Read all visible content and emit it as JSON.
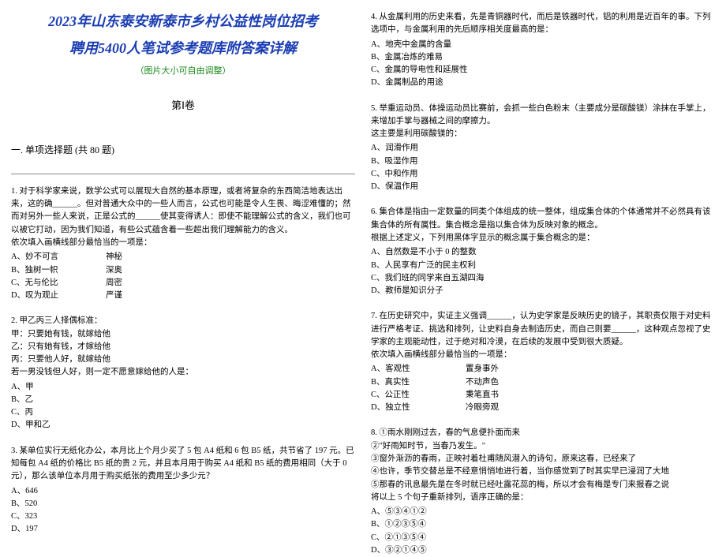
{
  "header": {
    "title_line1": "2023年山东泰安新泰市乡村公益性岗位招考",
    "title_line2": "聘用5400人笔试参考题库附答案详解",
    "subtitle": "（图片大小可自由调整）",
    "volume": "第Ⅰ卷",
    "section": "一. 单项选择题 (共 80 题)"
  },
  "q1": {
    "text": "1. 对于科学家来说，数学公式可以展现大自然的基本原理，或者将复杂的东西简洁地表达出来，这的确______。但对普通大众中的一些人而言，公式也可能是令人生畏、晦涩难懂的；然而对另外一些人来说，正是公式的______使其变得诱人：即使不能理解公式的含义，我们也可以被它打动，因为我们知道，有些公式蕴含着一些超出我们理解能力的含义。",
    "prompt": "依次填入画横线部分最恰当的一项是：",
    "a1": "A、妙不可言",
    "a2": "神秘",
    "b1": "B、独树一帜",
    "b2": "深奥",
    "c1": "C、无与伦比",
    "c2": "周密",
    "d1": "D、叹为观止",
    "d2": "严谨"
  },
  "q2": {
    "text": "2. 甲乙丙三人择偶标准：",
    "l1": "甲：只要她有钱，就嫁给他",
    "l2": "乙：只有她有钱，才嫁给他",
    "l3": "丙：只要他人好，就嫁给他",
    "l4": "若一男没钱但人好，则一定不愿意嫁给他的人是：",
    "a": "A、甲",
    "b": "B、乙",
    "c": "C、丙",
    "d": "D、甲和乙"
  },
  "q3": {
    "text": "3. 某单位实行无纸化办公，本月比上个月少买了 5 包 A4 纸和 6 包 B5 纸，共节省了 197 元。已知每包 A4 纸的价格比 B5 纸的贵 2 元，并且本月用于购买 A4 纸和 B5 纸的费用相同（大于 0 元），那么该单位本月用于购买纸张的费用至少多少元？",
    "a": "A、646",
    "b": "B、520",
    "c": "C、323",
    "d": "D、197"
  },
  "q4": {
    "text": "4. 从金属利用的历史来看，先是青铜器时代，而后是铁器时代，铝的利用是近百年的事。下列选项中，与金属利用的先后顺序相关度最高的是：",
    "a": "A、地壳中金属的含量",
    "b": "B、金属冶炼的难易",
    "c": "C、金属的导电性和延展性",
    "d": "D、金属制品的用途"
  },
  "q5": {
    "text": "5. 举重运动员、体操运动员比赛前，会抓一些白色粉末（主要成分是碳酸镁）涂抹在手掌上，来增加手掌与器械之间的摩擦力。",
    "l1": "这主要是利用碳酸镁的：",
    "a": "A、润滑作用",
    "b": "B、吸湿作用",
    "c": "C、中和作用",
    "d": "D、保温作用"
  },
  "q6": {
    "text": "6. 集合体是指由一定数量的同类个体组成的统一整体，组成集合体的个体通常并不必然具有该集合体的所有属性。集合概念是指以集合体为反映对象的概念。",
    "l1": "根据上述定义，下列用黑体字显示的概念属于集合概念的是：",
    "a": "A、自然数是不小于 0 的整数",
    "b": "B、人民享有广泛的民主权利",
    "c": "C、我们班的同学来自五湖四海",
    "d": "D、教师是知识分子"
  },
  "q7": {
    "text": "7. 在历史研究中，实证主义强调______，认为史学家是反映历史的镜子，其职责仅限于对史料进行严格考证、挑选和排列，让史料自身去制造历史，而自己则要______，这种观点忽视了史学家的主观能动性，过于绝对和冷漠，在后续的发展中受到很大质疑。",
    "l1": "依次填入画横线部分最恰当的一项是：",
    "a1": "A、客观性",
    "a2": "置身事外",
    "b1": "B、真实性",
    "b2": "不动声色",
    "c1": "C、公正性",
    "c2": "秉笔直书",
    "d1": "D、独立性",
    "d2": "冷眼旁观"
  },
  "q8": {
    "l1": "8. ①雨水刚刚过去，春的气息便扑面而来",
    "l2": "②\"好雨知时节，当春乃发生。\"",
    "l3": "③窗外渐沥的春雨，正映衬着杜甫随风潜入的诗句，原来这春，已经来了",
    "l4": "④也许，季节交替总是不经意悄悄地进行着，当你感觉到了时其实早已浸润了大地",
    "l5": "⑤那春的讯息最先是在冬时就已经吐露花蕊的梅，所以才会有梅是专门来报春之说",
    "l6": "将以上 5 个句子重新排列，语序正确的是：",
    "a": "A、⑤③④①②",
    "b": "B、①②③⑤④",
    "c": "C、②①③⑤④",
    "d": "D、③②①④⑤"
  }
}
